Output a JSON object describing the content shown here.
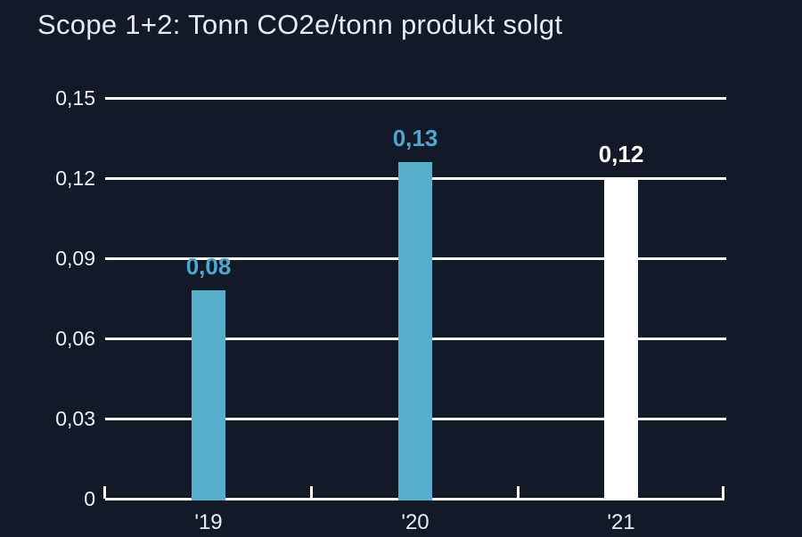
{
  "chart_data": {
    "type": "bar",
    "title": "Scope 1+2: Tonn CO2e/tonn produkt solgt",
    "categories": [
      "'19",
      "'20",
      "'21"
    ],
    "values": [
      0.08,
      0.13,
      0.12
    ],
    "value_labels": [
      "0,08",
      "0,13",
      "0,12"
    ],
    "plot_values": [
      0.078,
      0.126,
      0.12
    ],
    "bar_colors": [
      "#57AFCE",
      "#57AFCE",
      "#FFFFFF"
    ],
    "value_label_colors": [
      "#4DA7CE",
      "#4DA7CE",
      "#FFFFFF"
    ],
    "xlabel": "",
    "ylabel": "",
    "ylim": [
      0,
      0.15
    ],
    "y_ticks": [
      0,
      0.03,
      0.06,
      0.09,
      0.12,
      0.15
    ],
    "y_tick_labels": [
      "0",
      "0,03",
      "0,06",
      "0,09",
      "0,12",
      "0,15"
    ],
    "grid": true,
    "legend": "none",
    "decimal_separator": ","
  },
  "colors": {
    "background": "#121A28",
    "accent_blue": "#57AFCE",
    "grid_white": "#FFFFFF",
    "axis_text": "#EEF1F4",
    "title_text": "#E7EBEF"
  }
}
